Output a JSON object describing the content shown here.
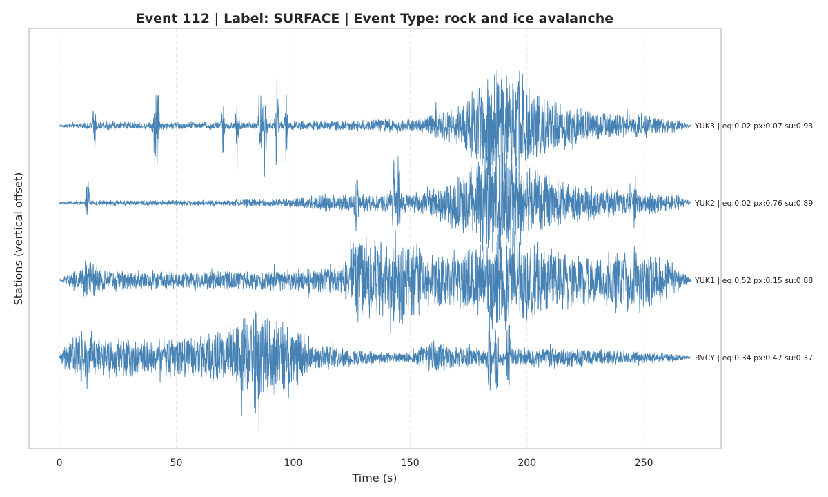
{
  "chart_data": {
    "type": "line",
    "title": "Event 112 | Label: SURFACE | Event Type: rock and ice avalanche",
    "xlabel": "Time (s)",
    "ylabel": "Stations (vertical offset)",
    "xlim": [
      -13,
      283
    ],
    "x_ticks": [
      0,
      50,
      100,
      150,
      200,
      250
    ],
    "x_tick_labels": [
      "0",
      "50",
      "100",
      "150",
      "200",
      "250"
    ],
    "duration_s": 270,
    "grid": "vertical-dashed",
    "line_color": "#4682b4",
    "series": [
      {
        "name": "YUK3 | eq:0.02 px:0.07 su:0.93",
        "offset": 3,
        "envelope": [
          [
            0,
            0.02
          ],
          [
            20,
            0.06
          ],
          [
            60,
            0.05
          ],
          [
            100,
            0.06
          ],
          [
            130,
            0.08
          ],
          [
            150,
            0.1
          ],
          [
            160,
            0.15
          ],
          [
            170,
            0.3
          ],
          [
            180,
            0.55
          ],
          [
            185,
            0.9
          ],
          [
            195,
            0.8
          ],
          [
            205,
            0.5
          ],
          [
            215,
            0.35
          ],
          [
            230,
            0.2
          ],
          [
            250,
            0.15
          ],
          [
            262,
            0.1
          ],
          [
            270,
            0.02
          ]
        ]
      },
      {
        "name": "YUK2 | eq:0.02 px:0.76 su:0.89",
        "offset": 2,
        "envelope": [
          [
            0,
            0.02
          ],
          [
            20,
            0.04
          ],
          [
            60,
            0.04
          ],
          [
            100,
            0.06
          ],
          [
            110,
            0.12
          ],
          [
            130,
            0.12
          ],
          [
            150,
            0.15
          ],
          [
            160,
            0.2
          ],
          [
            170,
            0.4
          ],
          [
            180,
            0.65
          ],
          [
            188,
            0.8
          ],
          [
            195,
            0.7
          ],
          [
            210,
            0.35
          ],
          [
            230,
            0.22
          ],
          [
            250,
            0.18
          ],
          [
            265,
            0.12
          ],
          [
            270,
            0.02
          ]
        ]
      },
      {
        "name": "YUK1 | eq:0.52 px:0.15 su:0.88",
        "offset": 1,
        "envelope": [
          [
            0,
            0.02
          ],
          [
            5,
            0.1
          ],
          [
            12,
            0.3
          ],
          [
            20,
            0.15
          ],
          [
            60,
            0.12
          ],
          [
            90,
            0.15
          ],
          [
            120,
            0.2
          ],
          [
            128,
            0.6
          ],
          [
            140,
            0.5
          ],
          [
            145,
            0.7
          ],
          [
            160,
            0.35
          ],
          [
            180,
            0.55
          ],
          [
            190,
            0.7
          ],
          [
            210,
            0.5
          ],
          [
            230,
            0.35
          ],
          [
            245,
            0.5
          ],
          [
            260,
            0.3
          ],
          [
            270,
            0.02
          ]
        ]
      },
      {
        "name": "BVCY | eq:0.34 px:0.47 su:0.37",
        "offset": 0,
        "envelope": [
          [
            0,
            0.02
          ],
          [
            4,
            0.25
          ],
          [
            8,
            0.4
          ],
          [
            15,
            0.3
          ],
          [
            40,
            0.25
          ],
          [
            70,
            0.35
          ],
          [
            85,
            0.7
          ],
          [
            95,
            0.55
          ],
          [
            110,
            0.2
          ],
          [
            130,
            0.1
          ],
          [
            150,
            0.07
          ],
          [
            160,
            0.25
          ],
          [
            170,
            0.15
          ],
          [
            190,
            0.12
          ],
          [
            210,
            0.15
          ],
          [
            240,
            0.1
          ],
          [
            260,
            0.07
          ],
          [
            270,
            0.02
          ]
        ]
      }
    ],
    "spikes": [
      [
        [
          15,
          0.5
        ],
        [
          41,
          0.9
        ],
        [
          42,
          0.7
        ],
        [
          70,
          0.5
        ],
        [
          76,
          0.55
        ],
        [
          86,
          0.95
        ],
        [
          88,
          0.85
        ],
        [
          93,
          0.8
        ],
        [
          97,
          0.7
        ],
        [
          161,
          0.35
        ]
      ],
      [
        [
          12,
          0.45
        ],
        [
          127,
          0.8
        ],
        [
          143,
          0.7
        ],
        [
          145,
          0.95
        ],
        [
          185,
          0.6
        ],
        [
          193,
          0.75
        ],
        [
          246,
          0.55
        ]
      ],
      [
        [
          178,
          0.8
        ],
        [
          185,
          0.95
        ],
        [
          191,
          0.9
        ]
      ],
      [
        [
          184,
          1.0
        ],
        [
          187,
          0.95
        ],
        [
          192,
          0.85
        ]
      ]
    ]
  }
}
